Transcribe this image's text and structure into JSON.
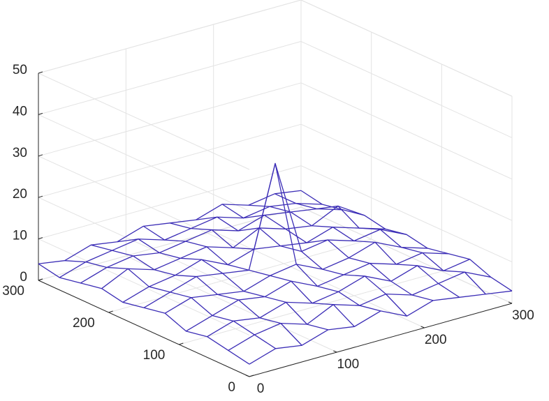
{
  "chart_data": {
    "type": "mesh",
    "color": "#3b2db6",
    "x": [
      0,
      30,
      60,
      90,
      120,
      150,
      180,
      210,
      240,
      270,
      300
    ],
    "y": [
      0,
      30,
      60,
      90,
      120,
      150,
      180,
      210,
      240,
      270,
      300
    ],
    "z": [
      [
        3,
        5,
        4,
        6,
        5,
        7,
        4,
        6,
        5,
        4,
        3
      ],
      [
        4,
        6,
        7,
        5,
        8,
        6,
        7,
        5,
        6,
        7,
        4
      ],
      [
        5,
        7,
        6,
        8,
        6,
        7,
        9,
        6,
        8,
        5,
        6
      ],
      [
        4,
        6,
        8,
        7,
        9,
        6,
        7,
        8,
        6,
        7,
        5
      ],
      [
        6,
        8,
        7,
        6,
        8,
        9,
        6,
        7,
        9,
        6,
        4
      ],
      [
        5,
        7,
        9,
        8,
        7,
        31,
        8,
        9,
        7,
        8,
        5
      ],
      [
        4,
        6,
        7,
        9,
        6,
        8,
        7,
        6,
        8,
        6,
        4
      ],
      [
        5,
        8,
        6,
        7,
        8,
        6,
        9,
        7,
        6,
        9,
        5
      ],
      [
        4,
        6,
        7,
        6,
        7,
        8,
        6,
        8,
        7,
        6,
        4
      ],
      [
        3,
        5,
        6,
        7,
        5,
        6,
        7,
        5,
        6,
        5,
        3
      ],
      [
        4,
        3,
        5,
        4,
        6,
        5,
        4,
        6,
        4,
        5,
        4
      ]
    ],
    "xlim": [
      0,
      300
    ],
    "ylim": [
      0,
      300
    ],
    "zlim": [
      0,
      50
    ],
    "xticks": [
      0,
      100,
      200,
      300
    ],
    "yticks": [
      0,
      100,
      200,
      300
    ],
    "zticks": [
      0,
      10,
      20,
      30,
      40,
      50
    ],
    "grid": true
  }
}
